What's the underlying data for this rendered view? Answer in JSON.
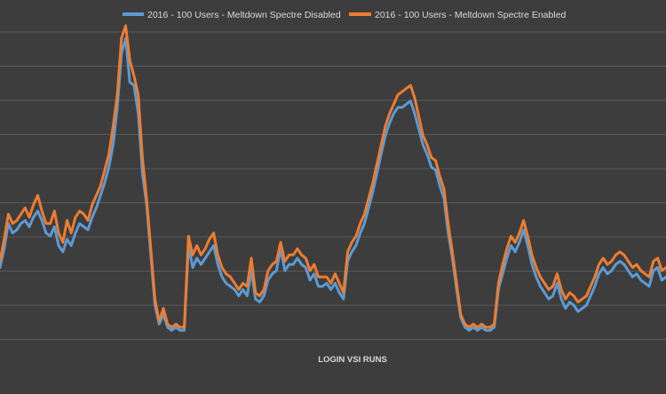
{
  "chart_data": {
    "type": "line",
    "title": "",
    "xlabel": "LOGIN VSI RUNS",
    "ylabel": "",
    "ylim": [
      0,
      10
    ],
    "grid": true,
    "legend_position": "top-center",
    "series": [
      {
        "name": "2016 - 100 Users - Meltdown Spectre Disabled",
        "color": "#5b9bd5",
        "values": [
          2.5,
          3.1,
          3.9,
          3.6,
          3.7,
          3.9,
          4.0,
          3.8,
          4.1,
          4.3,
          4.0,
          3.6,
          3.5,
          3.8,
          3.2,
          3.0,
          3.4,
          3.2,
          3.6,
          3.9,
          3.8,
          3.7,
          4.1,
          4.4,
          4.8,
          5.2,
          5.7,
          6.4,
          7.6,
          9.3,
          9.8,
          8.4,
          8.3,
          7.4,
          5.5,
          4.5,
          2.9,
          1.3,
          0.7,
          1.0,
          0.6,
          0.5,
          0.6,
          0.5,
          0.5,
          3.2,
          2.5,
          2.8,
          2.6,
          2.8,
          3.0,
          3.2,
          2.6,
          2.2,
          2.0,
          1.9,
          1.8,
          1.6,
          1.8,
          1.6,
          2.4,
          1.5,
          1.4,
          1.6,
          2.1,
          2.3,
          2.4,
          3.1,
          2.4,
          2.6,
          2.6,
          2.8,
          2.6,
          2.5,
          2.1,
          2.3,
          1.9,
          1.9,
          2.0,
          1.8,
          2.0,
          1.7,
          1.5,
          2.7,
          3.0,
          3.2,
          3.6,
          3.9,
          4.4,
          4.9,
          5.5,
          6.1,
          6.7,
          7.1,
          7.4,
          7.6,
          7.6,
          7.7,
          7.8,
          7.4,
          6.9,
          6.4,
          6.1,
          5.7,
          5.6,
          5.1,
          4.7,
          3.6,
          2.8,
          1.8,
          0.9,
          0.6,
          0.5,
          0.6,
          0.5,
          0.6,
          0.5,
          0.5,
          0.6,
          1.8,
          2.3,
          2.8,
          3.2,
          3.0,
          3.3,
          3.7,
          3.2,
          2.6,
          2.2,
          1.9,
          1.7,
          1.5,
          1.6,
          2.0,
          1.5,
          1.2,
          1.4,
          1.3,
          1.1,
          1.2,
          1.3,
          1.6,
          1.9,
          2.3,
          2.5,
          2.3,
          2.4,
          2.6,
          2.7,
          2.6,
          2.4,
          2.2,
          2.3,
          2.1,
          2.0,
          1.9,
          2.4,
          2.5,
          2.1,
          2.2
        ]
      },
      {
        "name": "2016 - 100 Users - Meltdown Spectre Enabled",
        "color": "#ed7d31",
        "values": [
          2.7,
          3.4,
          4.2,
          3.9,
          4.0,
          4.2,
          4.4,
          4.1,
          4.5,
          4.8,
          4.3,
          3.9,
          3.9,
          4.3,
          3.6,
          3.3,
          4.0,
          3.6,
          4.1,
          4.3,
          4.2,
          4.0,
          4.5,
          4.8,
          5.1,
          5.6,
          6.1,
          7.0,
          8.0,
          9.8,
          10.2,
          9.1,
          8.6,
          8.0,
          6.0,
          4.7,
          3.1,
          1.5,
          0.8,
          1.2,
          0.7,
          0.6,
          0.7,
          0.6,
          0.6,
          3.5,
          2.9,
          3.2,
          2.9,
          3.1,
          3.4,
          3.6,
          2.9,
          2.5,
          2.3,
          2.2,
          2.0,
          1.8,
          2.0,
          1.9,
          2.8,
          1.7,
          1.6,
          1.8,
          2.4,
          2.6,
          2.7,
          3.3,
          2.7,
          2.9,
          2.9,
          3.1,
          2.9,
          2.8,
          2.4,
          2.6,
          2.2,
          2.2,
          2.2,
          2.0,
          2.3,
          2.0,
          1.7,
          3.0,
          3.3,
          3.5,
          3.9,
          4.2,
          4.7,
          5.2,
          5.8,
          6.4,
          7.0,
          7.4,
          7.7,
          8.0,
          8.1,
          8.2,
          8.3,
          7.9,
          7.3,
          6.7,
          6.4,
          6.0,
          5.9,
          5.4,
          5.0,
          3.9,
          3.0,
          2.0,
          1.0,
          0.7,
          0.6,
          0.7,
          0.6,
          0.7,
          0.6,
          0.6,
          0.7,
          2.0,
          2.6,
          3.1,
          3.5,
          3.3,
          3.6,
          4.0,
          3.5,
          2.9,
          2.5,
          2.2,
          2.0,
          1.8,
          1.9,
          2.3,
          1.8,
          1.5,
          1.7,
          1.6,
          1.4,
          1.5,
          1.6,
          1.9,
          2.2,
          2.6,
          2.8,
          2.6,
          2.7,
          2.9,
          3.0,
          2.9,
          2.7,
          2.5,
          2.6,
          2.4,
          2.3,
          2.2,
          2.7,
          2.8,
          2.4,
          2.5
        ]
      }
    ]
  }
}
